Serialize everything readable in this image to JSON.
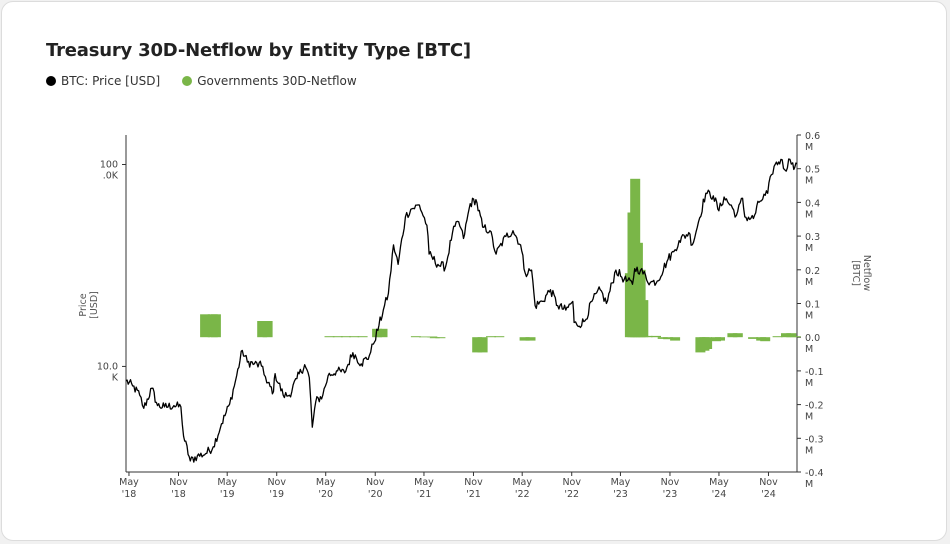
{
  "title": "Treasury 30D-Netflow by Entity Type [BTC]",
  "legend": [
    {
      "label": "BTC: Price [USD]",
      "color": "#000000"
    },
    {
      "label": "Governments 30D-Netflow",
      "color": "#7ab648"
    }
  ],
  "chart_data": {
    "type": "bar",
    "title": "Treasury 30D-Netflow by Entity Type [BTC]",
    "x_tick_labels": [
      [
        "May",
        "'18"
      ],
      [
        "Nov",
        "'18"
      ],
      [
        "May",
        "'19"
      ],
      [
        "Nov",
        "'19"
      ],
      [
        "May",
        "'20"
      ],
      [
        "Nov",
        "'20"
      ],
      [
        "May",
        "'21"
      ],
      [
        "Nov",
        "'21"
      ],
      [
        "May",
        "'22"
      ],
      [
        "Nov",
        "'22"
      ],
      [
        "May",
        "'23"
      ],
      [
        "Nov",
        "'23"
      ],
      [
        "May",
        "'24"
      ],
      [
        "Nov",
        "'24"
      ]
    ],
    "left_axis": {
      "label": [
        "Price",
        "[USD]"
      ],
      "scale": "log",
      "ticks": [
        {
          "value": 10000,
          "lines": [
            "10.0",
            "K"
          ]
        },
        {
          "value": 100000,
          "lines": [
            "100",
            ".0K"
          ]
        }
      ],
      "range": [
        3000,
        140000
      ]
    },
    "right_axis": {
      "label": [
        "Netflow",
        "[BTC]"
      ],
      "range": [
        -400000,
        600000
      ],
      "ticks": [
        {
          "value": 600000,
          "lines": [
            "0.6",
            "M"
          ]
        },
        {
          "value": 500000,
          "lines": [
            "0.5",
            "M"
          ]
        },
        {
          "value": 400000,
          "lines": [
            "0.4",
            "M"
          ]
        },
        {
          "value": 300000,
          "lines": [
            "0.3",
            "M"
          ]
        },
        {
          "value": 200000,
          "lines": [
            "0.2",
            "M"
          ]
        },
        {
          "value": 100000,
          "lines": [
            "0.1",
            "M"
          ]
        },
        {
          "value": 0,
          "lines": [
            "0.0",
            "M"
          ]
        },
        {
          "value": -100000,
          "lines": [
            "-0.1",
            "M"
          ]
        },
        {
          "value": -200000,
          "lines": [
            "-0.2",
            "M"
          ]
        },
        {
          "value": -300000,
          "lines": [
            "-0.3",
            "M"
          ]
        },
        {
          "value": -400000,
          "lines": [
            "-0.4",
            "M"
          ]
        }
      ]
    },
    "x_range": [
      "2018-04-20",
      "2025-02-15"
    ],
    "series": [
      {
        "name": "BTC: Price [USD]",
        "type": "line",
        "color": "#000000",
        "x": [
          "2018-04-20",
          "2018-05-15",
          "2018-06-10",
          "2018-06-25",
          "2018-07-25",
          "2018-08-15",
          "2018-09-10",
          "2018-10-15",
          "2018-11-10",
          "2018-11-20",
          "2018-12-15",
          "2019-01-10",
          "2019-02-10",
          "2019-03-10",
          "2019-04-10",
          "2019-05-10",
          "2019-06-01",
          "2019-06-26",
          "2019-07-15",
          "2019-08-10",
          "2019-09-10",
          "2019-09-25",
          "2019-10-20",
          "2019-10-26",
          "2019-11-25",
          "2019-12-18",
          "2020-01-15",
          "2020-02-13",
          "2020-03-01",
          "2020-03-12",
          "2020-03-25",
          "2020-04-20",
          "2020-05-10",
          "2020-06-10",
          "2020-07-10",
          "2020-08-10",
          "2020-09-10",
          "2020-10-10",
          "2020-10-25",
          "2020-11-15",
          "2020-12-01",
          "2020-12-20",
          "2021-01-08",
          "2021-01-25",
          "2021-02-21",
          "2021-03-13",
          "2021-04-14",
          "2021-05-12",
          "2021-05-20",
          "2021-06-22",
          "2021-07-20",
          "2021-08-15",
          "2021-09-07",
          "2021-09-25",
          "2021-10-20",
          "2021-11-10",
          "2021-12-05",
          "2022-01-01",
          "2022-01-24",
          "2022-03-01",
          "2022-03-28",
          "2022-04-25",
          "2022-05-12",
          "2022-06-05",
          "2022-06-18",
          "2022-07-15",
          "2022-08-14",
          "2022-09-10",
          "2022-10-10",
          "2022-11-05",
          "2022-11-10",
          "2022-11-21",
          "2022-12-20",
          "2023-01-15",
          "2023-02-15",
          "2023-03-10",
          "2023-04-14",
          "2023-05-15",
          "2023-06-15",
          "2023-06-23",
          "2023-07-15",
          "2023-08-20",
          "2023-09-15",
          "2023-10-25",
          "2023-11-15",
          "2023-12-05",
          "2024-01-10",
          "2024-01-23",
          "2024-02-15",
          "2024-03-13",
          "2024-04-10",
          "2024-05-01",
          "2024-05-20",
          "2024-06-20",
          "2024-07-05",
          "2024-07-28",
          "2024-08-05",
          "2024-09-06",
          "2024-09-27",
          "2024-10-29",
          "2024-11-12",
          "2024-11-22",
          "2024-12-17",
          "2025-01-01",
          "2025-01-20",
          "2025-01-30",
          "2025-02-07",
          "2025-02-15"
        ],
        "y": [
          8500,
          8000,
          7200,
          6200,
          7800,
          6400,
          6300,
          6400,
          6300,
          4500,
          3400,
          3600,
          3700,
          4000,
          5200,
          6500,
          8500,
          12000,
          10500,
          10300,
          10000,
          8300,
          7500,
          9200,
          7200,
          7200,
          8700,
          10200,
          8800,
          5000,
          6700,
          7200,
          9000,
          9500,
          9300,
          11700,
          10300,
          11300,
          12900,
          16000,
          19000,
          23000,
          40000,
          32000,
          55000,
          60000,
          63000,
          50000,
          36000,
          32000,
          31000,
          46000,
          52000,
          43000,
          64000,
          67000,
          49000,
          47000,
          36000,
          44000,
          47000,
          40000,
          29000,
          30000,
          20000,
          21000,
          24000,
          20000,
          19000,
          21000,
          16500,
          16000,
          16800,
          21000,
          24000,
          20500,
          30000,
          27000,
          25500,
          30500,
          30000,
          26000,
          26500,
          34000,
          37000,
          42000,
          46000,
          40000,
          52000,
          72000,
          70000,
          59000,
          69000,
          61000,
          56000,
          68000,
          55000,
          54000,
          65000,
          72000,
          89000,
          98000,
          106000,
          94000,
          106000,
          102000,
          97000,
          101000
        ]
      },
      {
        "name": "Governments 30D-Netflow",
        "type": "bar",
        "color": "#7ab648",
        "bars": [
          {
            "date": "2019-02-08",
            "value": 68000
          },
          {
            "date": "2019-03-08",
            "value": 68000
          },
          {
            "date": "2019-03-20",
            "value": 68000
          },
          {
            "date": "2019-09-08",
            "value": 48000
          },
          {
            "date": "2019-09-28",
            "value": 48000
          },
          {
            "date": "2020-05-15",
            "value": 3000
          },
          {
            "date": "2020-06-15",
            "value": 3000
          },
          {
            "date": "2020-07-15",
            "value": 3000
          },
          {
            "date": "2020-08-15",
            "value": 3000
          },
          {
            "date": "2020-09-15",
            "value": 3000
          },
          {
            "date": "2020-11-08",
            "value": 25000
          },
          {
            "date": "2020-11-28",
            "value": 25000
          },
          {
            "date": "2021-04-01",
            "value": 3000
          },
          {
            "date": "2021-05-01",
            "value": 2000
          },
          {
            "date": "2021-06-01",
            "value": 2000
          },
          {
            "date": "2021-06-10",
            "value": -3000
          },
          {
            "date": "2021-07-01",
            "value": -3000
          },
          {
            "date": "2021-11-15",
            "value": -45000
          },
          {
            "date": "2021-12-05",
            "value": -45000
          },
          {
            "date": "2022-01-05",
            "value": 3000
          },
          {
            "date": "2022-02-05",
            "value": 3000
          },
          {
            "date": "2022-05-10",
            "value": -10000
          },
          {
            "date": "2022-06-01",
            "value": -10000
          },
          {
            "date": "2023-06-05",
            "value": 190000
          },
          {
            "date": "2023-06-15",
            "value": 370000
          },
          {
            "date": "2023-06-25",
            "value": 470000
          },
          {
            "date": "2023-07-05",
            "value": 280000
          },
          {
            "date": "2023-07-15",
            "value": 200000
          },
          {
            "date": "2023-07-25",
            "value": 110000
          },
          {
            "date": "2023-08-10",
            "value": 4000
          },
          {
            "date": "2023-09-10",
            "value": 4000
          },
          {
            "date": "2023-10-05",
            "value": -5000
          },
          {
            "date": "2023-10-25",
            "value": -6000
          },
          {
            "date": "2023-11-20",
            "value": -10000
          },
          {
            "date": "2024-02-22",
            "value": -45000
          },
          {
            "date": "2024-03-08",
            "value": -40000
          },
          {
            "date": "2024-03-18",
            "value": -35000
          },
          {
            "date": "2024-04-20",
            "value": -12000
          },
          {
            "date": "2024-05-05",
            "value": -10000
          },
          {
            "date": "2024-06-20",
            "value": 12000
          },
          {
            "date": "2024-07-10",
            "value": 12000
          },
          {
            "date": "2024-09-05",
            "value": -5000
          },
          {
            "date": "2024-10-05",
            "value": -10000
          },
          {
            "date": "2024-10-20",
            "value": -12000
          },
          {
            "date": "2024-12-05",
            "value": 3000
          },
          {
            "date": "2025-01-05",
            "value": 12000
          },
          {
            "date": "2025-01-25",
            "value": 12000
          },
          {
            "date": "2025-02-10",
            "value": 3000
          }
        ]
      }
    ]
  }
}
